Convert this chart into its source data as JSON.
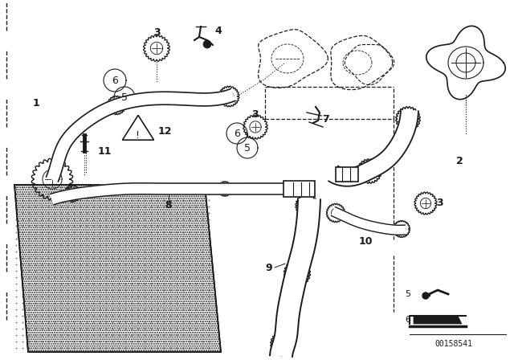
{
  "bg_color": "#ffffff",
  "line_color": "#1a1a1a",
  "diagram_number": "00158541",
  "fig_w": 6.4,
  "fig_h": 4.48,
  "dpi": 100
}
